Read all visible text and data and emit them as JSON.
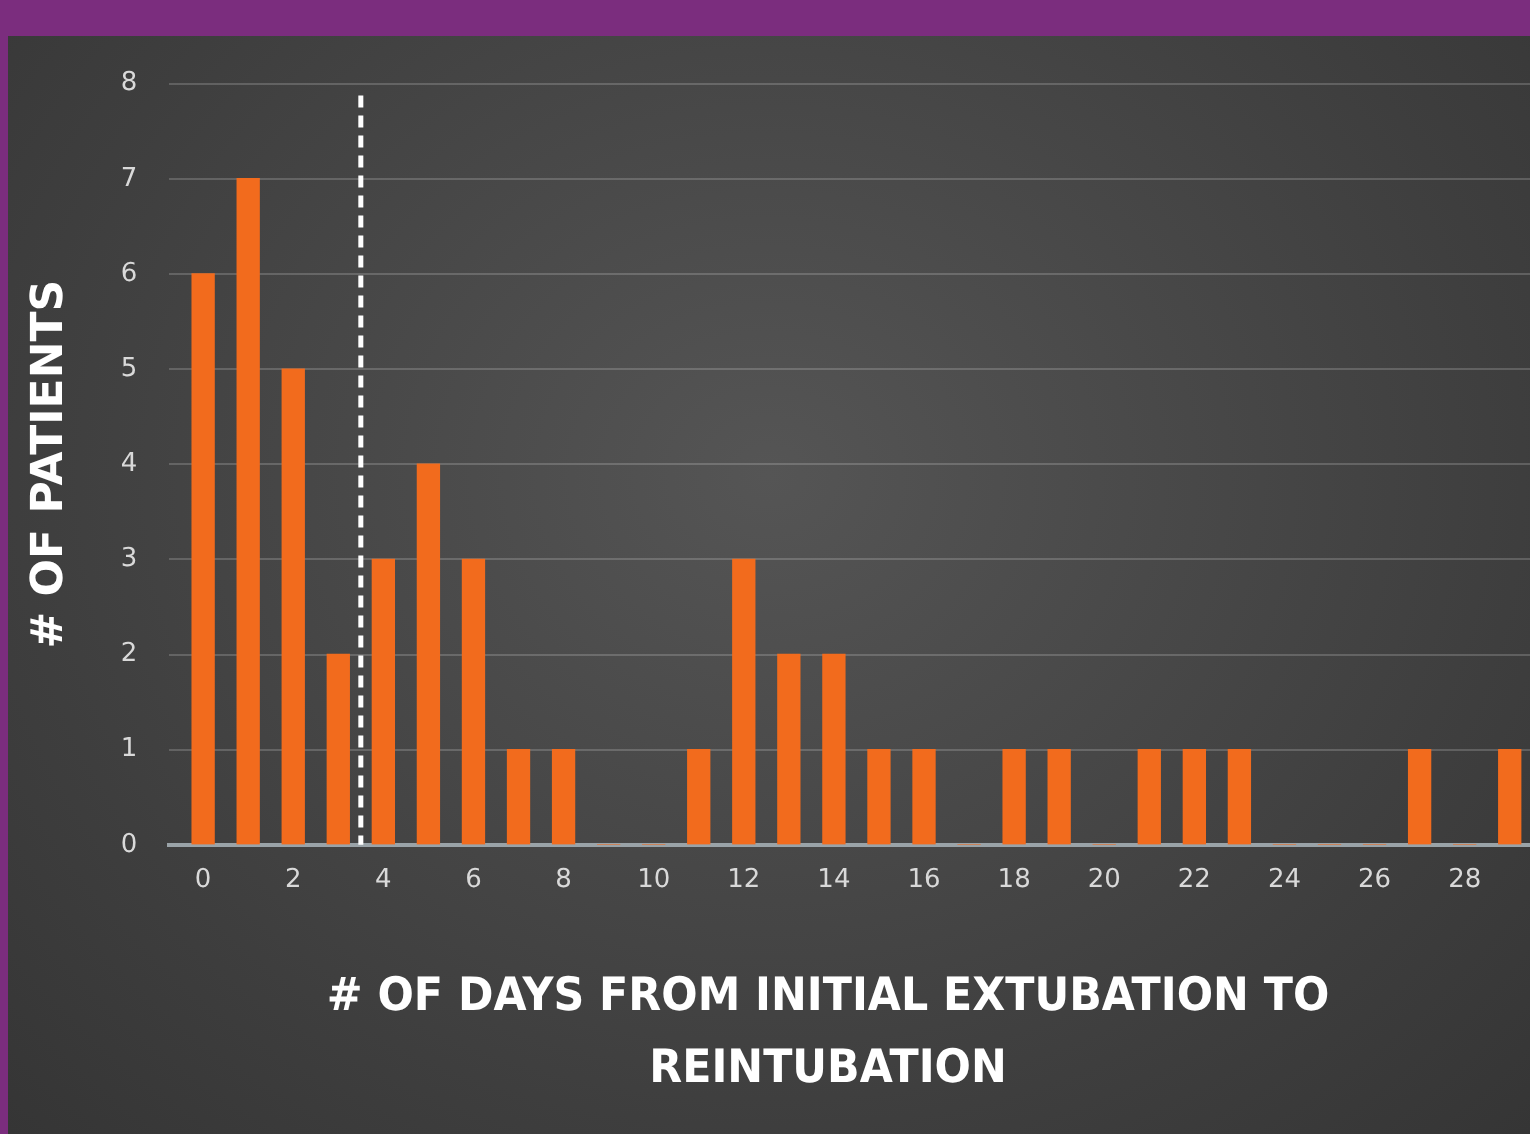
{
  "chart_data": {
    "type": "bar",
    "xlabel": "# OF DAYS FROM INITIAL EXTUBATION TO REINTUBATION",
    "ylabel": "# OF PATIENTS",
    "x": [
      0,
      1,
      2,
      3,
      4,
      5,
      6,
      7,
      8,
      9,
      10,
      11,
      12,
      13,
      14,
      15,
      16,
      17,
      18,
      19,
      20,
      21,
      22,
      23,
      24,
      25,
      26,
      27,
      28,
      29
    ],
    "values": [
      6,
      7,
      5,
      2,
      3,
      4,
      3,
      1,
      1,
      0,
      0,
      1,
      3,
      2,
      2,
      1,
      1,
      0,
      1,
      1,
      0,
      1,
      1,
      1,
      0,
      0,
      0,
      1,
      0,
      1
    ],
    "color": "#f26b1d",
    "xlim": [
      -0.75,
      29.45
    ],
    "xticks": [
      0,
      2,
      4,
      6,
      8,
      10,
      12,
      14,
      16,
      18,
      20,
      22,
      24,
      26,
      28
    ],
    "ylim": [
      0,
      8
    ],
    "yticks": [
      0,
      1,
      2,
      3,
      4,
      5,
      6,
      7,
      8
    ],
    "grid": "y",
    "ref_lines": [
      {
        "axis": "x",
        "value": 3.5,
        "color": "#ffffff",
        "line_style": "dashed"
      }
    ]
  }
}
